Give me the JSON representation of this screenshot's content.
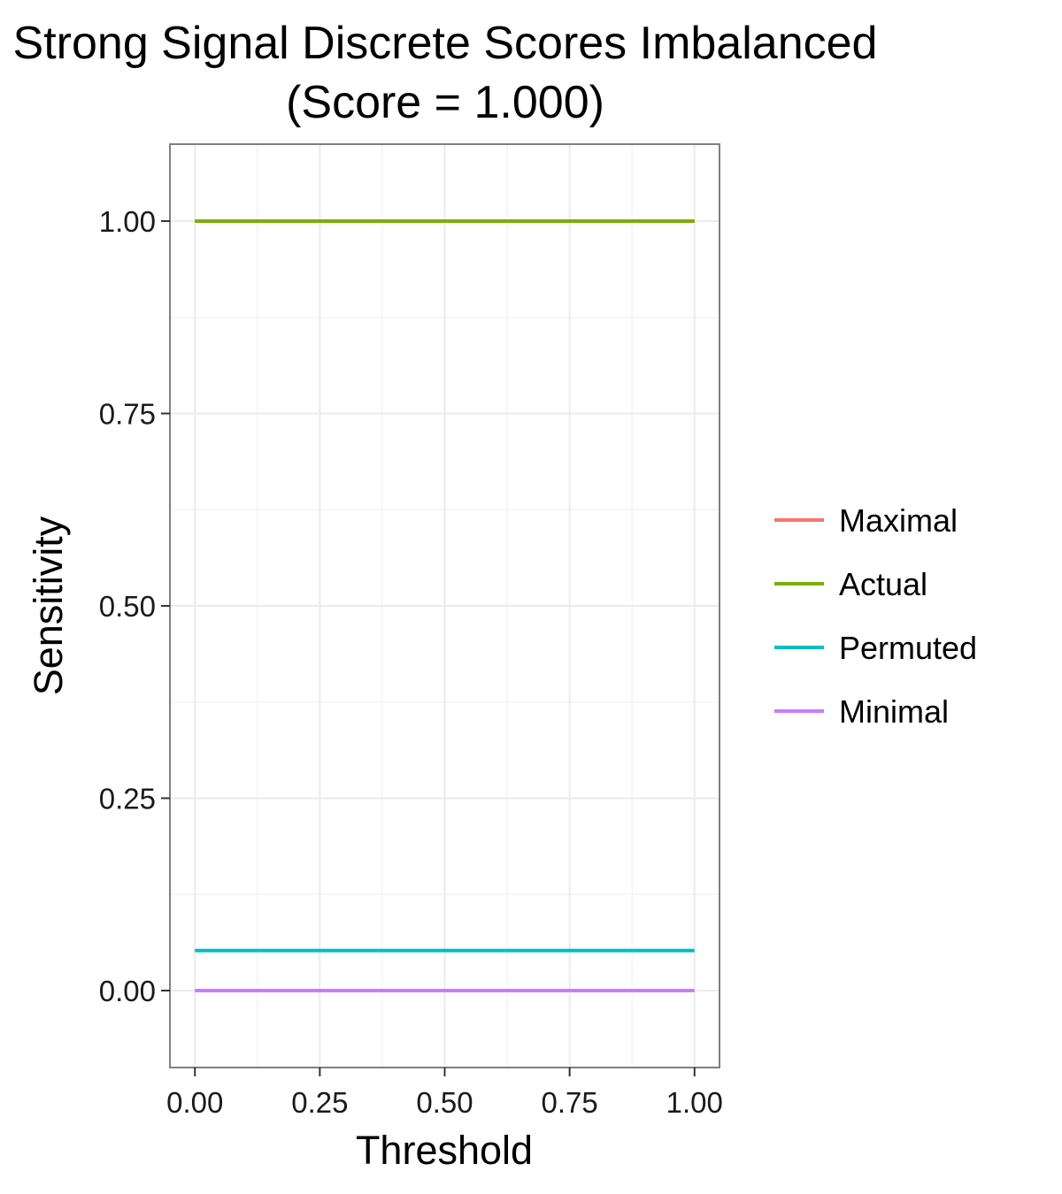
{
  "chart_data": {
    "type": "line",
    "title": "Strong Signal Discrete Scores Imbalanced",
    "subtitle": "(Score = 1.000)",
    "xlabel": "Threshold",
    "ylabel": "Sensitivity",
    "xlim": [
      -0.05,
      1.05
    ],
    "ylim": [
      -0.1,
      1.1
    ],
    "x_ticks": [
      0,
      0.25,
      0.5,
      0.75,
      1
    ],
    "x_tick_labels": [
      "0.00",
      "0.25",
      "0.50",
      "0.75",
      "1.00"
    ],
    "y_ticks": [
      0,
      0.25,
      0.5,
      0.75,
      1
    ],
    "y_tick_labels": [
      "0.00",
      "0.25",
      "0.50",
      "0.75",
      "1.00"
    ],
    "grid": true,
    "legend_position": "right",
    "series": [
      {
        "name": "Maximal",
        "color": "#F8766D",
        "x": [
          0,
          1
        ],
        "y": [
          1,
          1
        ]
      },
      {
        "name": "Actual",
        "color": "#7CAE00",
        "x": [
          0,
          1
        ],
        "y": [
          1,
          1
        ]
      },
      {
        "name": "Permuted",
        "color": "#00BFC4",
        "x": [
          0,
          1
        ],
        "y": [
          0.052,
          0.052
        ]
      },
      {
        "name": "Minimal",
        "color": "#C77CFF",
        "x": [
          0,
          1
        ],
        "y": [
          0,
          0
        ]
      }
    ]
  }
}
